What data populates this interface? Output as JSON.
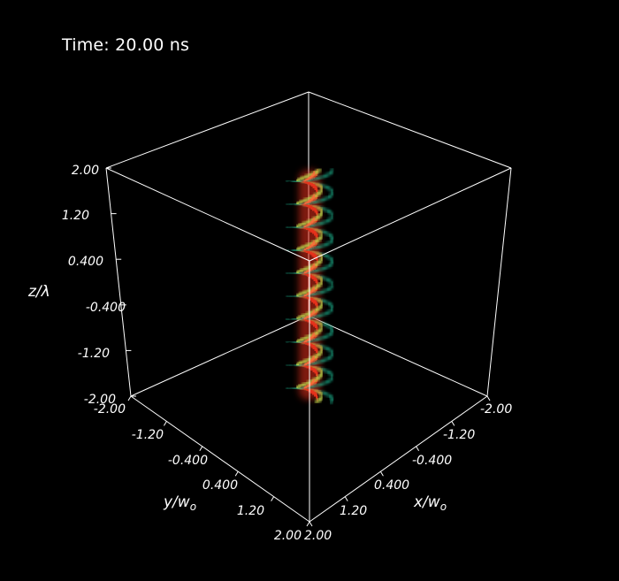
{
  "time_label": "Time: 20.00 ns",
  "axes": {
    "z": {
      "title": "z/λ",
      "ticks": [
        "2.00",
        "1.20",
        "0.400",
        "-0.400",
        "-1.20",
        "-2.00"
      ]
    },
    "y": {
      "title_main": "y/w",
      "title_sub": "o",
      "ticks": [
        "-2.00",
        "-1.20",
        "-0.400",
        "0.400",
        "1.20",
        "2.00"
      ]
    },
    "x": {
      "title_main": "x/w",
      "title_sub": "o",
      "ticks": [
        "2.00",
        "1.20",
        "0.400",
        "-0.400",
        "-1.20",
        "-2.00"
      ]
    }
  },
  "colors": {
    "background": "#000000",
    "box_lines": "#ffffff",
    "core": "#e8321e",
    "core_highlight": "#ff6a3a",
    "inner_halo": "#b8d24a",
    "outer_halo": "#1fae8a"
  }
}
